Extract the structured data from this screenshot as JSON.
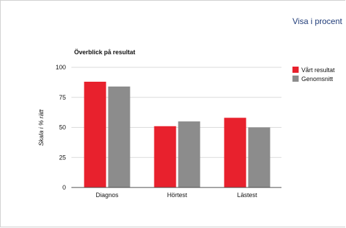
{
  "header": {
    "percent_link": "Visa i procent"
  },
  "colors": {
    "series1": "#e8212d",
    "series2": "#8c8c8c",
    "grid": "#d9d9d9",
    "axis": "#4a4a4a",
    "text": "#111111"
  },
  "chart_data": {
    "type": "bar",
    "title": "Överblick på resultat",
    "xlabel": "",
    "ylabel": "Skala i % rätt",
    "ylim": [
      0,
      100
    ],
    "yticks": [
      0,
      25,
      50,
      75,
      100
    ],
    "categories": [
      "Diagnos",
      "Hörtest",
      "Lästest"
    ],
    "series": [
      {
        "name": "Vårt resultat",
        "values": [
          88,
          51,
          58
        ]
      },
      {
        "name": "Genomsnitt",
        "values": [
          84,
          55,
          50
        ]
      }
    ],
    "grid": true,
    "legend": "top-right"
  }
}
